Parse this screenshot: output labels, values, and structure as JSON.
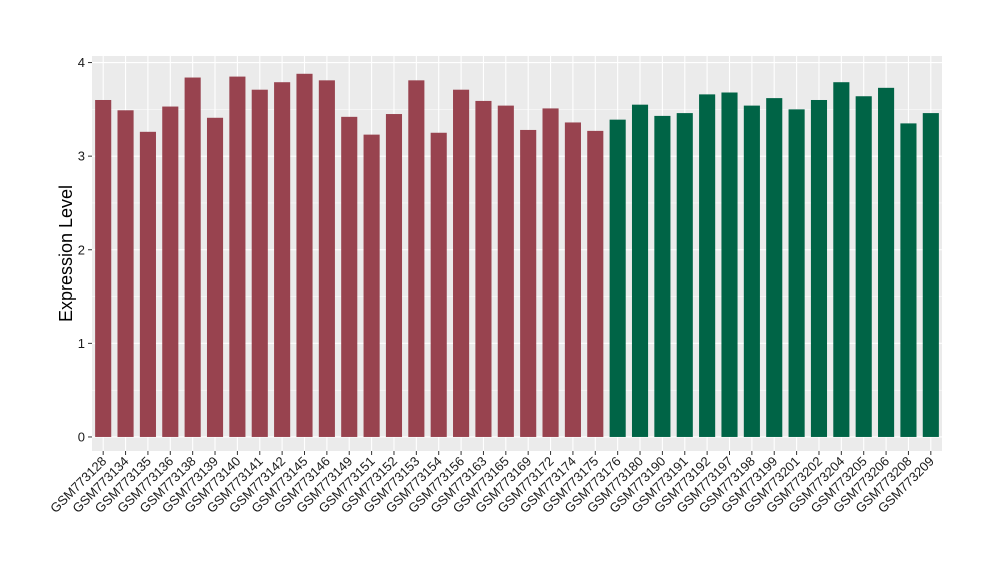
{
  "chart_data": {
    "type": "bar",
    "title": "",
    "xlabel": "",
    "ylabel": "Expression Level",
    "ylim": [
      -0.15,
      4.07
    ],
    "yticks": [
      0,
      1,
      2,
      3,
      4
    ],
    "grid": true,
    "background": "#ebebeb",
    "gridline_color": "#ffffff",
    "categories": [
      "GSM773128",
      "GSM773134",
      "GSM773135",
      "GSM773136",
      "GSM773138",
      "GSM773139",
      "GSM773140",
      "GSM773141",
      "GSM773142",
      "GSM773145",
      "GSM773146",
      "GSM773149",
      "GSM773151",
      "GSM773152",
      "GSM773153",
      "GSM773154",
      "GSM773156",
      "GSM773163",
      "GSM773165",
      "GSM773169",
      "GSM773172",
      "GSM773174",
      "GSM773175",
      "GSM773176",
      "GSM773180",
      "GSM773190",
      "GSM773191",
      "GSM773192",
      "GSM773197",
      "GSM773198",
      "GSM773199",
      "GSM773201",
      "GSM773202",
      "GSM773204",
      "GSM773205",
      "GSM773206",
      "GSM773208",
      "GSM773209"
    ],
    "values": [
      3.6,
      3.49,
      3.26,
      3.53,
      3.84,
      3.41,
      3.85,
      3.71,
      3.79,
      3.88,
      3.81,
      3.42,
      3.23,
      3.45,
      3.81,
      3.25,
      3.71,
      3.59,
      3.54,
      3.28,
      3.51,
      3.36,
      3.27,
      3.39,
      3.55,
      3.43,
      3.46,
      3.66,
      3.68,
      3.54,
      3.62,
      3.5,
      3.6,
      3.79,
      3.64,
      3.73,
      3.35,
      3.46
    ],
    "groups": [
      {
        "color": "#98434f",
        "count": 23
      },
      {
        "color": "#006446",
        "count": 15
      }
    ]
  }
}
